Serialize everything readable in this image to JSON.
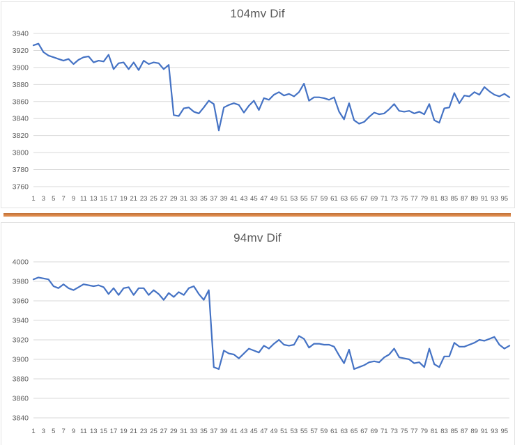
{
  "page": {
    "background": "#ffffff",
    "frame_border_color": "#e3e3e3"
  },
  "divider": {
    "name": "orange-separator-line",
    "fill_color": "#DD8A4C",
    "edge_color": "#C4753C"
  },
  "x_axis_labels": [
    "1",
    "3",
    "5",
    "7",
    "9",
    "11",
    "13",
    "15",
    "17",
    "19",
    "21",
    "23",
    "25",
    "27",
    "29",
    "31",
    "33",
    "35",
    "37",
    "39",
    "41",
    "43",
    "45",
    "47",
    "49",
    "51",
    "53",
    "55",
    "57",
    "59",
    "61",
    "63",
    "65",
    "67",
    "69",
    "71",
    "73",
    "75",
    "77",
    "79",
    "81",
    "83",
    "85",
    "87",
    "89",
    "91",
    "93",
    "95"
  ],
  "chart_data": [
    {
      "type": "line",
      "title": "104mv Dif",
      "xlabel": "",
      "ylabel": "",
      "ylim": [
        3760,
        3940
      ],
      "ytick_labels": [
        "3940",
        "3920",
        "3900",
        "3880",
        "3860",
        "3840",
        "3820",
        "3800",
        "3780",
        "3760"
      ],
      "grid": true,
      "legend": "none",
      "num_points": 96,
      "x_first": 1,
      "x_last": 96,
      "line_color": "#4472C4",
      "grid_color": "#D9D9D9",
      "label_color": "#595959",
      "values": [
        3926,
        3928,
        3918,
        3914,
        3912,
        3910,
        3908,
        3910,
        3904,
        3909,
        3912,
        3913,
        3906,
        3908,
        3907,
        3915,
        3898,
        3905,
        3906,
        3898,
        3906,
        3897,
        3908,
        3904,
        3906,
        3905,
        3898,
        3903,
        3844,
        3843,
        3852,
        3853,
        3848,
        3846,
        3853,
        3861,
        3857,
        3826,
        3853,
        3856,
        3858,
        3856,
        3847,
        3855,
        3861,
        3850,
        3864,
        3862,
        3868,
        3871,
        3867,
        3869,
        3866,
        3871,
        3881,
        3861,
        3865,
        3865,
        3864,
        3862,
        3865,
        3848,
        3839,
        3858,
        3838,
        3834,
        3836,
        3842,
        3847,
        3845,
        3846,
        3851,
        3857,
        3849,
        3848,
        3849,
        3846,
        3848,
        3845,
        3857,
        3838,
        3835,
        3852,
        3853,
        3870,
        3858,
        3867,
        3866,
        3871,
        3868,
        3877,
        3872,
        3868,
        3866,
        3869,
        3865
      ]
    },
    {
      "type": "line",
      "title": "94mv Dif",
      "xlabel": "",
      "ylabel": "",
      "ylim": [
        3840,
        4000
      ],
      "ytick_labels": [
        "4000",
        "3980",
        "3960",
        "3940",
        "3920",
        "3900",
        "3880",
        "3860",
        "3840"
      ],
      "grid": true,
      "legend": "none",
      "num_points": 96,
      "x_first": 1,
      "x_last": 96,
      "line_color": "#4472C4",
      "grid_color": "#D9D9D9",
      "label_color": "#595959",
      "values": [
        3982,
        3984,
        3983,
        3982,
        3975,
        3973,
        3977,
        3973,
        3971,
        3974,
        3977,
        3976,
        3975,
        3976,
        3974,
        3967,
        3973,
        3966,
        3973,
        3974,
        3966,
        3973,
        3973,
        3966,
        3971,
        3967,
        3961,
        3968,
        3964,
        3969,
        3966,
        3973,
        3975,
        3967,
        3961,
        3971,
        3892,
        3890,
        3909,
        3906,
        3905,
        3901,
        3906,
        3911,
        3909,
        3907,
        3914,
        3911,
        3916,
        3920,
        3915,
        3914,
        3915,
        3924,
        3921,
        3912,
        3916,
        3916,
        3915,
        3915,
        3913,
        3904,
        3896,
        3910,
        3890,
        3892,
        3894,
        3897,
        3898,
        3897,
        3902,
        3905,
        3911,
        3902,
        3901,
        3900,
        3896,
        3897,
        3892,
        3911,
        3895,
        3892,
        3903,
        3903,
        3917,
        3913,
        3913,
        3915,
        3917,
        3920,
        3919,
        3921,
        3923,
        3915,
        3911,
        3914
      ]
    }
  ]
}
